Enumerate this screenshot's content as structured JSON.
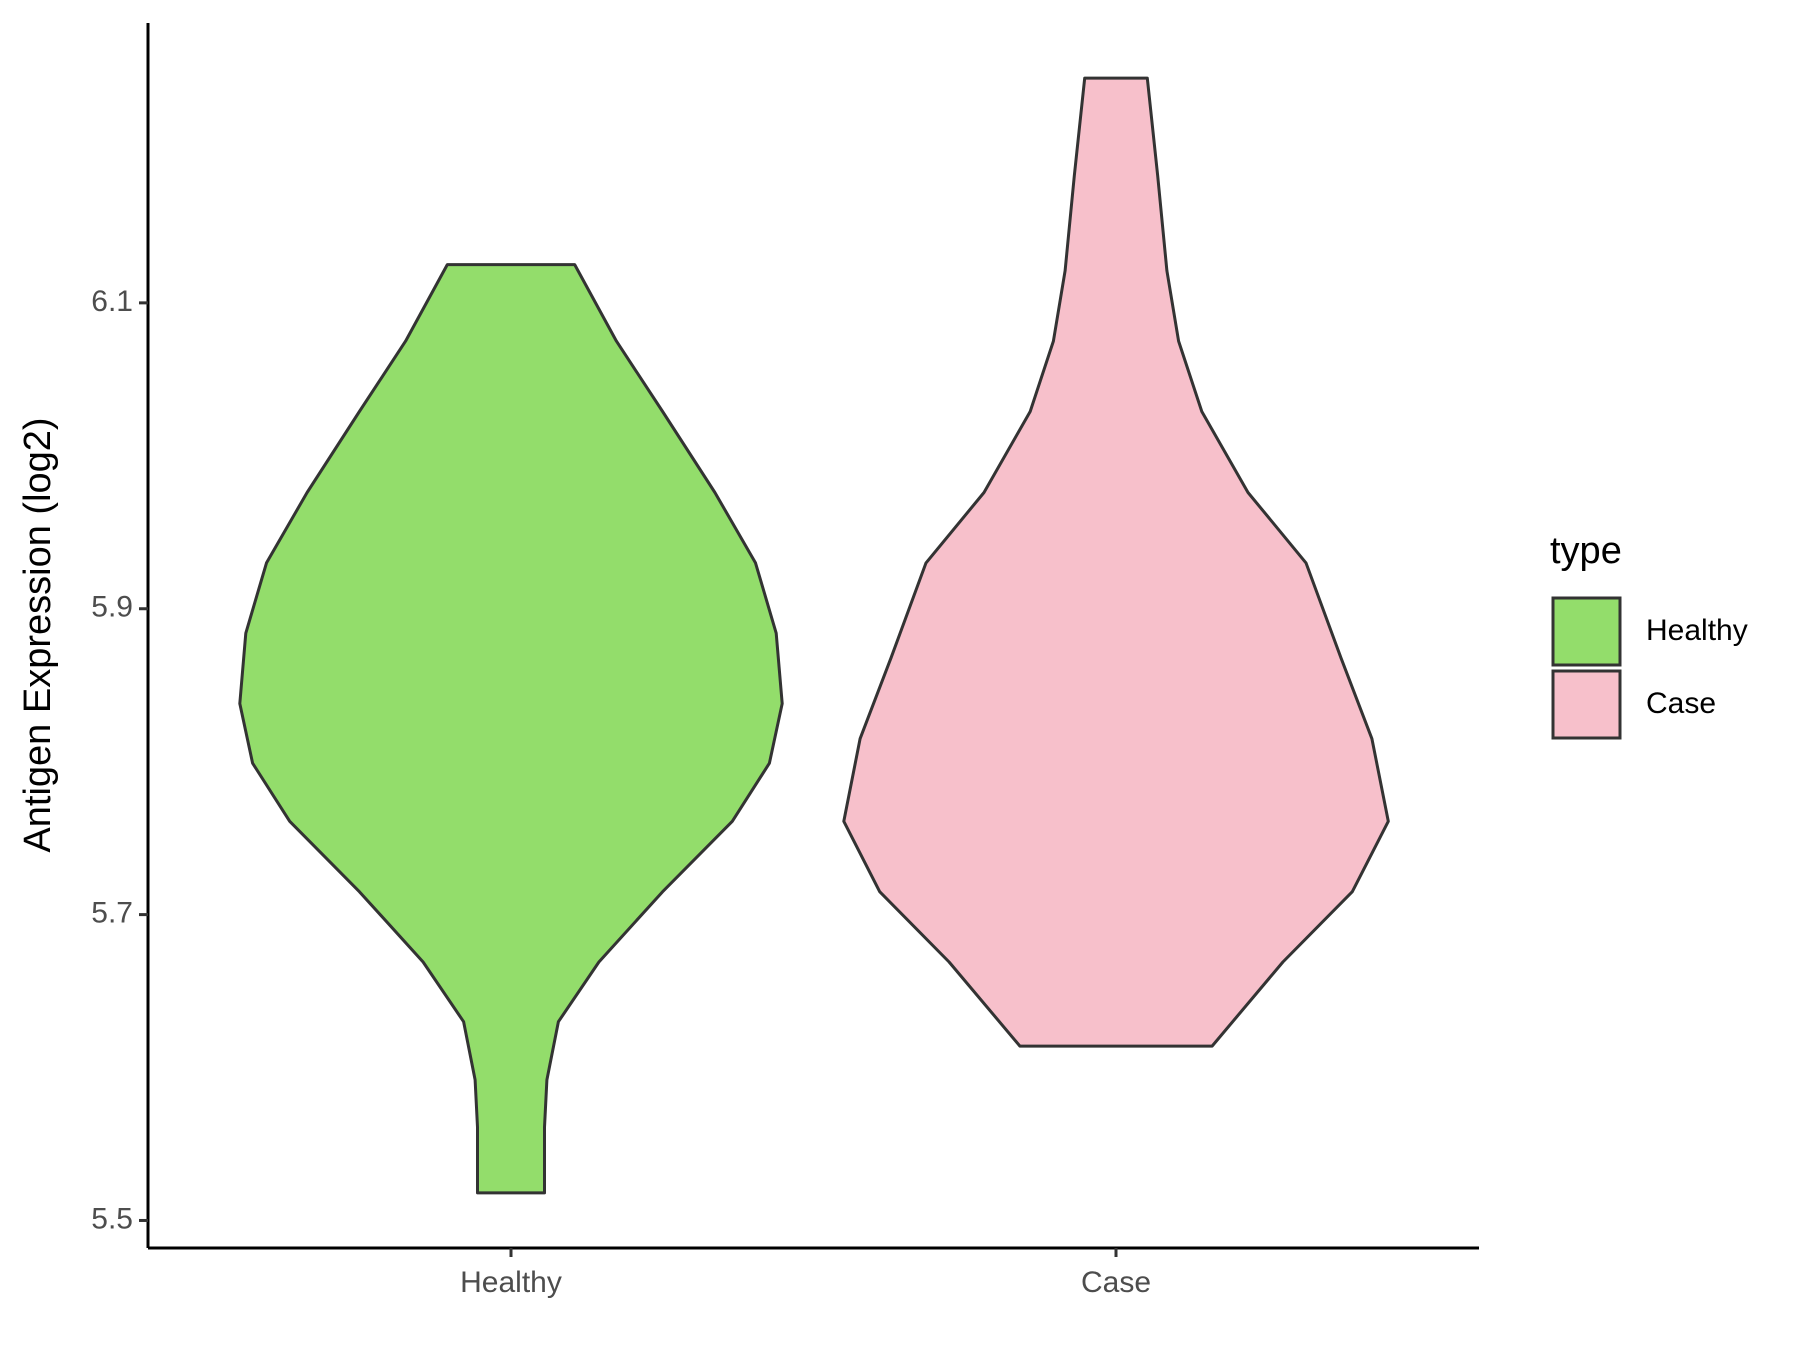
{
  "chart_data": {
    "type": "violin",
    "y_label": "Antigen Expression (log2)",
    "categories": [
      "Healthy",
      "Case"
    ],
    "ylim": [
      5.482,
      6.283
    ],
    "yticks": [
      5.5,
      5.7,
      5.9,
      6.1
    ],
    "legend_title": "type",
    "legend_position": "right",
    "series": [
      {
        "name": "Healthy",
        "color": "#93dd6b",
        "y": [
          5.518,
          5.561,
          5.592,
          5.63,
          5.669,
          5.715,
          5.761,
          5.799,
          5.838,
          5.884,
          5.93,
          5.976,
          6.029,
          6.075,
          6.125
        ],
        "width": [
          0.123,
          0.123,
          0.132,
          0.174,
          0.323,
          0.557,
          0.813,
          0.949,
          0.996,
          0.974,
          0.898,
          0.749,
          0.557,
          0.387,
          0.234
        ]
      },
      {
        "name": "Case",
        "color": "#f7c0cb",
        "y": [
          5.614,
          5.669,
          5.715,
          5.761,
          5.815,
          5.868,
          5.93,
          5.976,
          6.029,
          6.075,
          6.121,
          6.183,
          6.247
        ],
        "width": [
          0.353,
          0.613,
          0.868,
          1.0,
          0.94,
          0.826,
          0.698,
          0.485,
          0.315,
          0.23,
          0.187,
          0.153,
          0.115
        ]
      }
    ]
  }
}
